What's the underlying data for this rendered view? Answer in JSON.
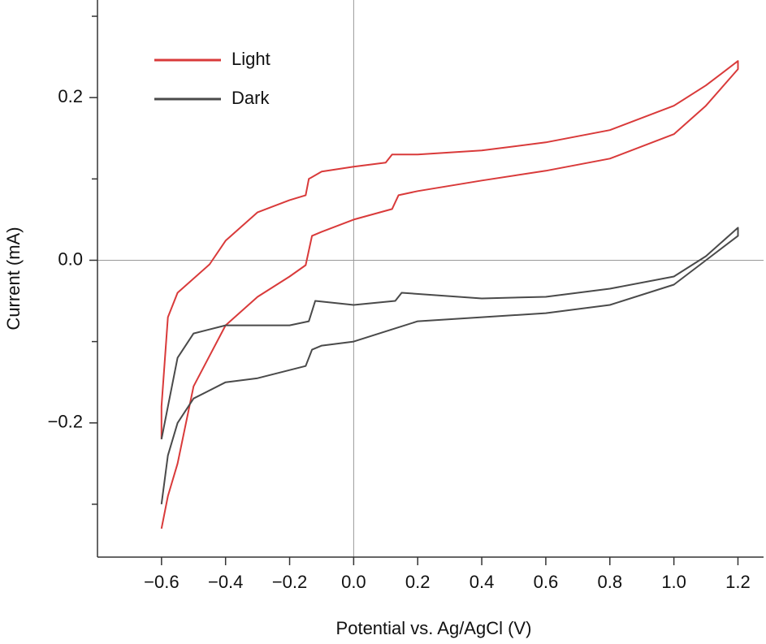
{
  "chart_data": {
    "type": "line",
    "xlabel": "Potential vs. Ag/AgCl (V)",
    "ylabel": "Current (mA)",
    "xlim": [
      -0.8,
      1.28
    ],
    "ylim": [
      -0.365,
      0.32
    ],
    "xticks": [
      {
        "value": -0.6,
        "label": "−0.6"
      },
      {
        "value": -0.4,
        "label": "−0.4"
      },
      {
        "value": -0.2,
        "label": "−0.2"
      },
      {
        "value": 0,
        "label": "0.0"
      },
      0.2,
      0.4,
      0.6,
      0.8,
      {
        "value": 1,
        "label": "1.0"
      },
      1.2
    ],
    "yticks": [
      {
        "value": -0.2,
        "label": "−0.2"
      },
      {
        "value": 0,
        "label": "0.0"
      },
      0.2
    ],
    "yminorticks": [
      -0.3,
      -0.1,
      0.1,
      0.3
    ],
    "zero_lines": true,
    "legend": "upper left",
    "series": [
      {
        "name": "Light",
        "color": "#d93a3a",
        "x": [
          -0.6,
          -0.58,
          -0.55,
          -0.5,
          -0.4,
          -0.3,
          -0.2,
          -0.15,
          -0.13,
          -0.1,
          0,
          0.12,
          0.14,
          0.2,
          0.4,
          0.6,
          0.8,
          1.0,
          1.1,
          1.2,
          1.2,
          1.1,
          1.0,
          0.8,
          0.6,
          0.4,
          0.2,
          0.12,
          0.1,
          0,
          -0.1,
          -0.14,
          -0.15,
          -0.2,
          -0.3,
          -0.4,
          -0.45,
          -0.55,
          -0.58,
          -0.6,
          -0.6
        ],
        "values": [
          -0.33,
          -0.29,
          -0.25,
          -0.155,
          -0.08,
          -0.045,
          -0.02,
          -0.006,
          0.03,
          0.035,
          0.05,
          0.063,
          0.08,
          0.085,
          0.098,
          0.11,
          0.125,
          0.155,
          0.19,
          0.235,
          0.245,
          0.215,
          0.19,
          0.16,
          0.145,
          0.135,
          0.13,
          0.13,
          0.12,
          0.115,
          0.109,
          0.1,
          0.08,
          0.074,
          0.059,
          0.024,
          -0.005,
          -0.04,
          -0.07,
          -0.18,
          -0.22
        ]
      },
      {
        "name": "Dark",
        "color": "#4a4a4a",
        "x": [
          -0.6,
          -0.58,
          -0.55,
          -0.5,
          -0.4,
          -0.3,
          -0.15,
          -0.13,
          -0.1,
          0,
          0.12,
          0.2,
          0.4,
          0.6,
          0.8,
          1.0,
          1.1,
          1.2,
          1.2,
          1.1,
          1.0,
          0.8,
          0.6,
          0.4,
          0.15,
          0.13,
          0,
          -0.12,
          -0.14,
          -0.2,
          -0.4,
          -0.5,
          -0.55,
          -0.58,
          -0.6
        ],
        "values": [
          -0.3,
          -0.24,
          -0.2,
          -0.17,
          -0.15,
          -0.145,
          -0.13,
          -0.11,
          -0.105,
          -0.1,
          -0.085,
          -0.075,
          -0.07,
          -0.065,
          -0.055,
          -0.03,
          0.0,
          0.03,
          0.04,
          0.005,
          -0.02,
          -0.035,
          -0.045,
          -0.047,
          -0.04,
          -0.05,
          -0.055,
          -0.05,
          -0.075,
          -0.08,
          -0.08,
          -0.09,
          -0.12,
          -0.18,
          -0.22
        ]
      }
    ]
  }
}
